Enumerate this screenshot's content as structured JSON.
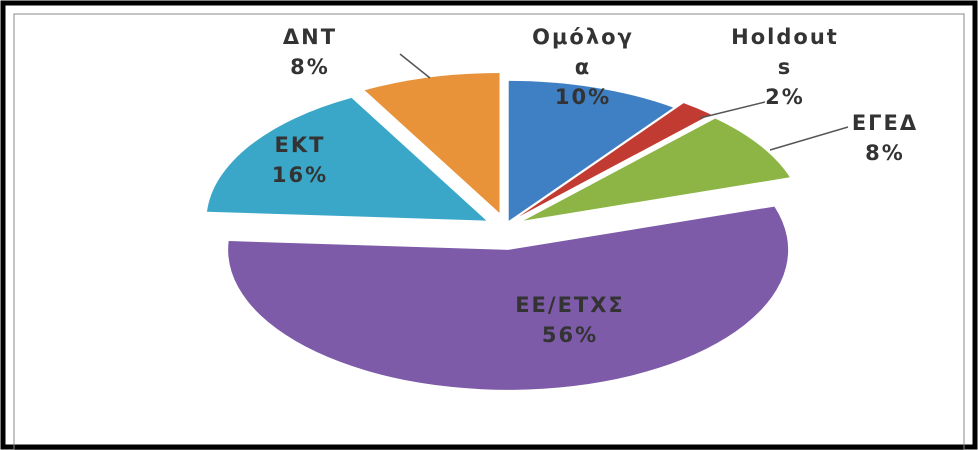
{
  "chart_data": {
    "type": "pie",
    "categories": [
      "Ομόλογα",
      "Holdouts",
      "ΕΓΕΔ",
      "ΕΕ/ΕΤΧΣ",
      "ΕΚΤ",
      "ΔΝΤ"
    ],
    "values": [
      10,
      2,
      8,
      56,
      16,
      8
    ],
    "value_labels": [
      "10%",
      "2%",
      "8%",
      "56%",
      "16%",
      "8%"
    ],
    "colors": [
      "#3f7fc4",
      "#c23b33",
      "#8db545",
      "#7d5ba8",
      "#3ba7c8",
      "#e8923a"
    ]
  }
}
